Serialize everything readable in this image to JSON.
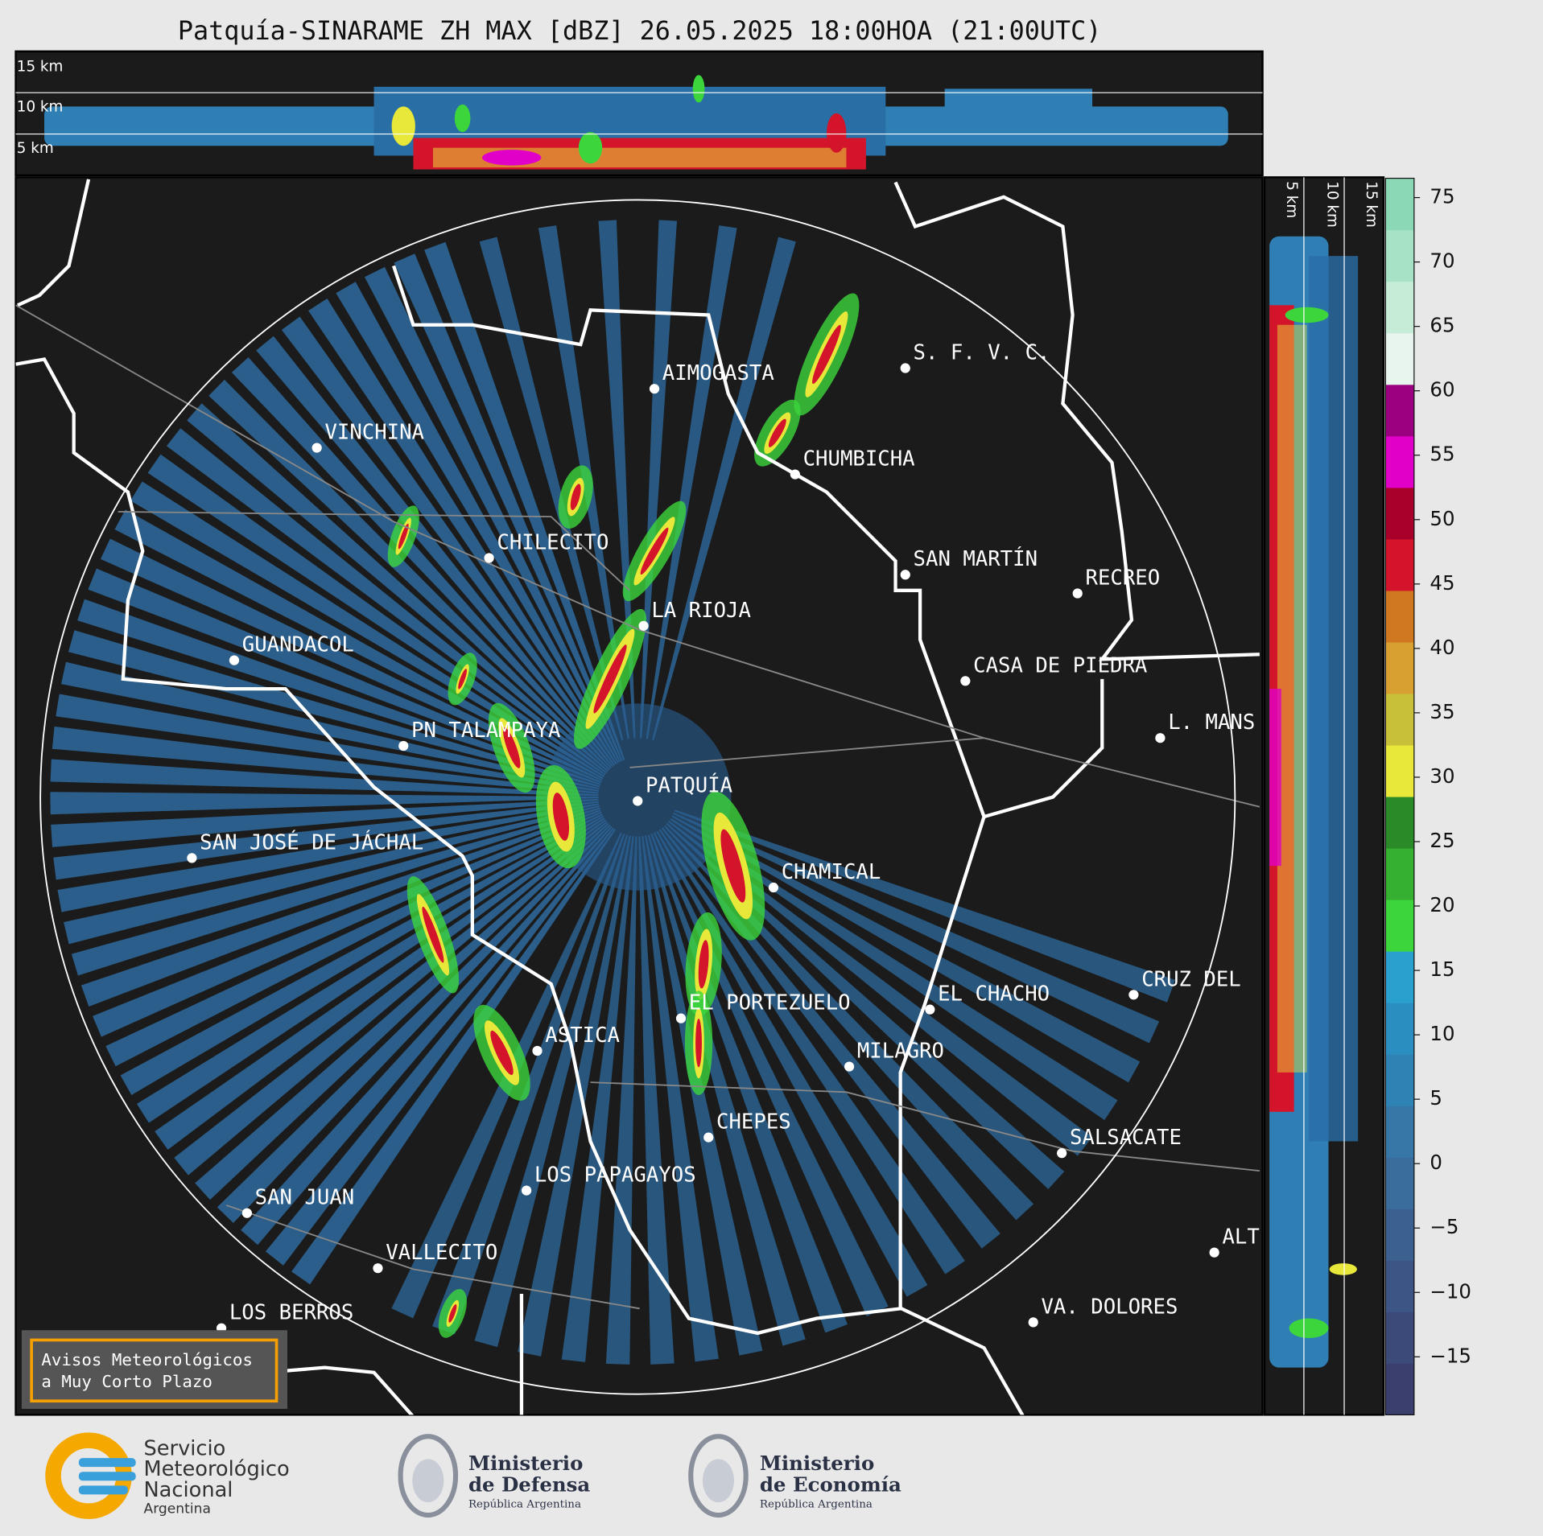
{
  "header": {
    "title": "Patquía-SINARAME ZH MAX [dBZ] 26.05.2025 18:00HOA (21:00UTC)"
  },
  "cross_section": {
    "height_labels": [
      "15 km",
      "10 km",
      "5 km"
    ]
  },
  "side_section": {
    "height_labels": [
      "5 km",
      "10 km",
      "15 km"
    ]
  },
  "map": {
    "places": [
      "AIMOGASTA",
      "S. F. V. C.",
      "VINCHINA",
      "CHUMBICHA",
      "CHILECITO",
      "SAN MARTÍN",
      "RECREO",
      "LA RIOJA",
      "GUANDACOL",
      "CASA DE PIEDRA",
      "L. MANS",
      "PN TALAMPAYA",
      "PATQUÍA",
      "SAN JOSÉ DE JÁCHAL",
      "CHAMICAL",
      "CRUZ DEL",
      "EL CHACHO",
      "EL PORTEZUELO",
      "ASTICA",
      "MILAGRO",
      "CHEPES",
      "SALSACATE",
      "LOS PAPAGAYOS",
      "SAN JUAN",
      "ALT",
      "VALLECITO",
      "VA. DOLORES",
      "LOS BERROS"
    ]
  },
  "colorbar": {
    "lim": [
      -19.5,
      76.5
    ],
    "ticks": [
      75,
      70,
      65,
      60,
      55,
      50,
      45,
      40,
      35,
      30,
      25,
      20,
      15,
      10,
      5,
      0,
      {
        "value": -5,
        "label": "−5"
      },
      {
        "value": -10,
        "label": "−10"
      },
      {
        "value": -15,
        "label": "−15"
      }
    ],
    "colors": [
      "#3b3f6e",
      "#3c4a7a",
      "#3d5585",
      "#3c6090",
      "#3a6d9c",
      "#3677a8",
      "#2f83b4",
      "#2a8fc0",
      "#2aa0cf",
      "#3cd63c",
      "#35b030",
      "#2a8a28",
      "#e8e83a",
      "#c8c038",
      "#d8a030",
      "#d07820",
      "#d4142a",
      "#a8002a",
      "#e000c8",
      "#9a0080",
      "#e8f5ee",
      "#c6ecd8",
      "#a8e2c6",
      "#8ad8b6"
    ]
  },
  "notice": {
    "lines": [
      "Avisos Meteorológicos",
      "a Muy Corto Plazo"
    ]
  },
  "footer": {
    "smn": {
      "lines": [
        "Servicio",
        "Meteorológico",
        "Nacional"
      ],
      "country": "Argentina"
    },
    "defensa": {
      "lines": [
        "Ministerio",
        "de Defensa"
      ],
      "country": "República Argentina"
    },
    "economia": {
      "lines": [
        "Ministerio",
        "de Economía"
      ],
      "country": "República Argentina"
    }
  }
}
